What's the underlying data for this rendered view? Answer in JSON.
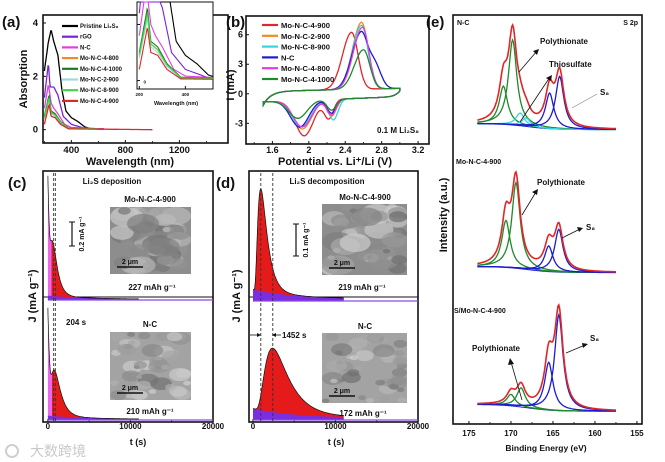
{
  "panel_labels": [
    "(a)",
    "(b)",
    "(c)",
    "(d)",
    "(e)"
  ],
  "chart_data": [
    {
      "panel": "(a)",
      "type": "line",
      "xlabel": "Wavelength (nm)",
      "ylabel": "Absorption",
      "xlim": [
        190,
        1560
      ],
      "ylim": [
        -0.5,
        4.3
      ],
      "xticks": [
        400,
        800,
        1200
      ],
      "yticks": [
        0,
        2,
        4
      ],
      "legend_position": "top-center",
      "series": [
        {
          "name": "Pristine Li₂S₈",
          "color": "#000000",
          "points": [
            [
              200,
              2.2
            ],
            [
              230,
              3.3
            ],
            [
              250,
              3.75
            ],
            [
              270,
              3.3
            ],
            [
              300,
              2.8
            ],
            [
              330,
              1.5
            ],
            [
              360,
              0.7
            ],
            [
              400,
              0.45
            ],
            [
              450,
              0.3
            ],
            [
              500,
              0.1
            ],
            [
              550,
              0.03
            ],
            [
              640,
              0.03
            ]
          ]
        },
        {
          "name": "rGO",
          "color": "#7a22d8",
          "points": [
            [
              200,
              1.2
            ],
            [
              230,
              2.5
            ],
            [
              242,
              1.6
            ],
            [
              270,
              1.6
            ],
            [
              300,
              1.3
            ],
            [
              340,
              0.5
            ],
            [
              400,
              0.2
            ],
            [
              500,
              0.05
            ],
            [
              640,
              0.03
            ]
          ]
        },
        {
          "name": "N-C",
          "color": "#e040e0",
          "points": [
            [
              200,
              0.8
            ],
            [
              230,
              1.7
            ],
            [
              250,
              1.0
            ],
            [
              270,
              0.8
            ],
            [
              300,
              0.6
            ],
            [
              350,
              0.2
            ],
            [
              400,
              0.08
            ],
            [
              640,
              0.03
            ]
          ]
        },
        {
          "name": "Mo-N-C-4-800",
          "color": "#f08a24",
          "points": [
            [
              200,
              0.5
            ],
            [
              235,
              1.2
            ],
            [
              250,
              0.65
            ],
            [
              280,
              0.55
            ],
            [
              320,
              0.3
            ],
            [
              380,
              0.05
            ],
            [
              640,
              0.02
            ]
          ]
        },
        {
          "name": "Mo-N-C-4-1000",
          "color": "#1d7a24",
          "points": [
            [
              200,
              0.5
            ],
            [
              235,
              1.3
            ],
            [
              250,
              0.7
            ],
            [
              280,
              0.6
            ],
            [
              320,
              0.3
            ],
            [
              380,
              0.06
            ],
            [
              640,
              0.02
            ]
          ]
        },
        {
          "name": "Mo-N-C-2-900",
          "color": "#9fd8dc",
          "points": [
            [
              200,
              0.4
            ],
            [
              235,
              1.1
            ],
            [
              250,
              0.6
            ],
            [
              280,
              0.5
            ],
            [
              320,
              0.25
            ],
            [
              380,
              0.04
            ],
            [
              640,
              0.02
            ]
          ]
        },
        {
          "name": "Mo-N-C-8-900",
          "color": "#44d444",
          "points": [
            [
              200,
              0.45
            ],
            [
              235,
              1.2
            ],
            [
              250,
              0.65
            ],
            [
              280,
              0.55
            ],
            [
              320,
              0.28
            ],
            [
              380,
              0.05
            ],
            [
              640,
              0.02
            ]
          ]
        },
        {
          "name": "Mo-N-C-4-900",
          "color": "#e0262a",
          "points": [
            [
              200,
              0.2
            ],
            [
              235,
              0.95
            ],
            [
              250,
              0.5
            ],
            [
              280,
              0.45
            ],
            [
              320,
              0.2
            ],
            [
              380,
              0.03
            ],
            [
              1000,
              0.0
            ]
          ]
        }
      ],
      "inset": {
        "xlabel": "Wavelength (nm)",
        "xlim": [
          190,
          520
        ],
        "ylim": [
          -0.15,
          1.4
        ],
        "xticks": [
          200,
          400
        ],
        "yticks": [
          0,
          1
        ]
      }
    },
    {
      "panel": "(b)",
      "type": "line",
      "xlabel": "Potential vs. Li⁺/Li (V)",
      "ylabel": "I (mA)",
      "xlim": [
        1.31,
        3.32
      ],
      "ylim": [
        -5.1,
        7.9
      ],
      "xticks": [
        1.6,
        2.0,
        2.4,
        2.8,
        3.2
      ],
      "yticks": [
        -3,
        0,
        3,
        6
      ],
      "annotation": "0.1 M Li₂S₈",
      "legend_position": "top-left",
      "series": [
        {
          "name": "Mo-N-C-4-900",
          "color": "#e0262a",
          "oxidation_peak": [
            2.47,
            6.3
          ],
          "reduction_peaks": [
            [
              2.22,
              -2.5
            ],
            [
              1.95,
              -4.2
            ]
          ]
        },
        {
          "name": "Mo-N-C-2-900",
          "color": "#f08a24",
          "oxidation_peak": [
            2.58,
            7.3
          ],
          "reduction_peaks": [
            [
              2.25,
              -2.3
            ],
            [
              1.93,
              -3.5
            ]
          ]
        },
        {
          "name": "Mo-N-C-8-900",
          "color": "#33d6e0",
          "oxidation_peak": [
            2.58,
            7.0
          ],
          "reduction_peaks": [
            [
              2.27,
              -2.7
            ],
            [
              1.92,
              -3.3
            ]
          ]
        },
        {
          "name": "N-C",
          "color": "#1c1cd0",
          "oxidation_peak": [
            2.57,
            6.1
          ],
          "reduction_peaks": [
            [
              2.25,
              -2.0
            ],
            [
              1.9,
              -3.3
            ]
          ]
        },
        {
          "name": "Mo-N-C-4-800",
          "color": "#e040e0",
          "oxidation_peak": [
            2.59,
            6.8
          ],
          "reduction_peaks": [
            [
              2.25,
              -2.2
            ],
            [
              1.93,
              -3.3
            ]
          ]
        },
        {
          "name": "Mo-N-C-4-1000",
          "color": "#1d8a2b",
          "oxidation_peak": [
            2.6,
            4.5
          ],
          "reduction_peaks": [
            [
              2.25,
              -1.7
            ],
            [
              1.88,
              -2.4
            ]
          ]
        }
      ]
    },
    {
      "panel": "(c)",
      "type": "area",
      "title": "Li₂S deposition",
      "xlabel": "t (s)",
      "ylabel": "J (mA g⁻¹)",
      "xlim": [
        -590,
        20000
      ],
      "xticks": [
        0,
        10000,
        20000
      ],
      "scale_bar": "0.2 mA g⁻¹",
      "scale_bar_value": 0.2,
      "time_difference": "204 s",
      "sem_scale": "2 μm",
      "series": [
        {
          "name": "Mo-N-C-4-900",
          "capacity": "227 mAh g⁻¹",
          "peak_time": 700,
          "peak_current": 0.33,
          "initial_current": 1.0
        },
        {
          "name": "N-C",
          "capacity": "210 mAh g⁻¹",
          "peak_time": 904,
          "peak_current": 0.33,
          "initial_current": 0.9
        }
      ]
    },
    {
      "panel": "(d)",
      "type": "area",
      "title": "Li₂S decomposition",
      "xlabel": "t (s)",
      "ylabel": "J (mA g⁻¹)",
      "xlim": [
        -480,
        20000
      ],
      "xticks": [
        0,
        10000,
        20000
      ],
      "scale_bar": "0.1 mA g⁻¹",
      "scale_bar_value": 0.1,
      "time_difference": "1452 s",
      "sem_scale": "2 μm",
      "series": [
        {
          "name": "Mo-N-C-4-900",
          "capacity": "219 mAh g⁻¹",
          "peak_time": 950,
          "peak_current": 0.32,
          "initial_current": 0
        },
        {
          "name": "N-C",
          "capacity": "172 mAh g⁻¹",
          "peak_time": 2402,
          "peak_current": 0.2,
          "initial_current": 0
        }
      ]
    },
    {
      "panel": "(e)",
      "type": "line",
      "title": "S 2p",
      "xlabel": "Binding Energy (eV)",
      "ylabel": "Intensity (a.u.)",
      "xlim": [
        176.9,
        154.4
      ],
      "xticks": [
        175,
        170,
        165,
        160,
        155
      ],
      "spectra": [
        {
          "name": "N-C",
          "components": [
            {
              "label": "Polythionate",
              "color": "#1d8a2b",
              "peaks": [
                [
                  169.8,
                  1.0
                ],
                [
                  170.9,
                  0.45
                ]
              ]
            },
            {
              "label": "Thiosulfate",
              "color": "#33d6e0",
              "peaks": [
                [
                  168.9,
                  0.15
                ],
                [
                  168.2,
                  0.1
                ]
              ]
            },
            {
              "label": "S₈",
              "color": "#1c1cd0",
              "peaks": [
                [
                  164.2,
                  0.62
                ],
                [
                  165.4,
                  0.42
                ]
              ]
            }
          ]
        },
        {
          "name": "Mo-N-C-4-900",
          "components": [
            {
              "label": "Polythionate",
              "color": "#1d8a2b",
              "peaks": [
                [
                  169.4,
                  1.0
                ],
                [
                  170.6,
                  0.55
                ]
              ]
            },
            {
              "label": "S₈",
              "color": "#1c1cd0",
              "peaks": [
                [
                  164.3,
                  0.5
                ],
                [
                  165.5,
                  0.3
                ]
              ]
            }
          ]
        },
        {
          "name": "S/Mo-N-C-4-900",
          "components": [
            {
              "label": "Polythionate",
              "color": "#1d8a2b",
              "peaks": [
                [
                  168.8,
                  0.2
                ],
                [
                  170.0,
                  0.12
                ]
              ]
            },
            {
              "label": "S₈",
              "color": "#1c1cd0",
              "peaks": [
                [
                  164.3,
                  1.0
                ],
                [
                  165.5,
                  0.5
                ]
              ]
            }
          ]
        }
      ]
    }
  ],
  "watermark": "大数跨境"
}
